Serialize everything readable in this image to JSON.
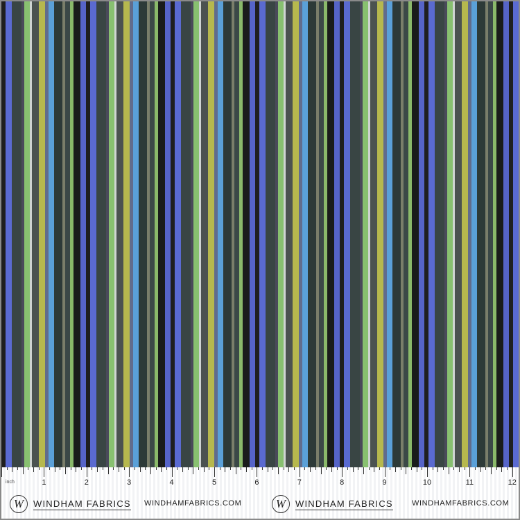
{
  "fabric": {
    "repeat_colors": [
      "#1f1f1f",
      "#5a6ad1",
      "#394544",
      "#4a4a5a",
      "#88c070",
      "#cfd4d2",
      "#4b5250",
      "#b6b84e",
      "#616c8c",
      "#5aa0d8",
      "#2d3a38",
      "#7a7e6a",
      "#3b4847",
      "#8ab96a",
      "#1a1c1b",
      "#5664c8"
    ],
    "repeat_widths": [
      6,
      9,
      14,
      4,
      8,
      3,
      10,
      9,
      5,
      8,
      12,
      4,
      7,
      5,
      10,
      8
    ],
    "palette": {
      "black": "#1a1c1b",
      "periwinkle": "#5a6ad1",
      "slate": "#394544",
      "lime": "#88c070",
      "olive": "#b6b84e",
      "sky": "#5aa0d8"
    }
  },
  "ruler": {
    "unit_label": "inch",
    "numbers": [
      "1",
      "2",
      "3",
      "4",
      "5",
      "6",
      "7",
      "8",
      "9",
      "10",
      "11",
      "12"
    ]
  },
  "branding": {
    "logo_letter": "W",
    "name": "WINDHAM FABRICS",
    "url": "WINDHAMFABRICS.COM"
  }
}
